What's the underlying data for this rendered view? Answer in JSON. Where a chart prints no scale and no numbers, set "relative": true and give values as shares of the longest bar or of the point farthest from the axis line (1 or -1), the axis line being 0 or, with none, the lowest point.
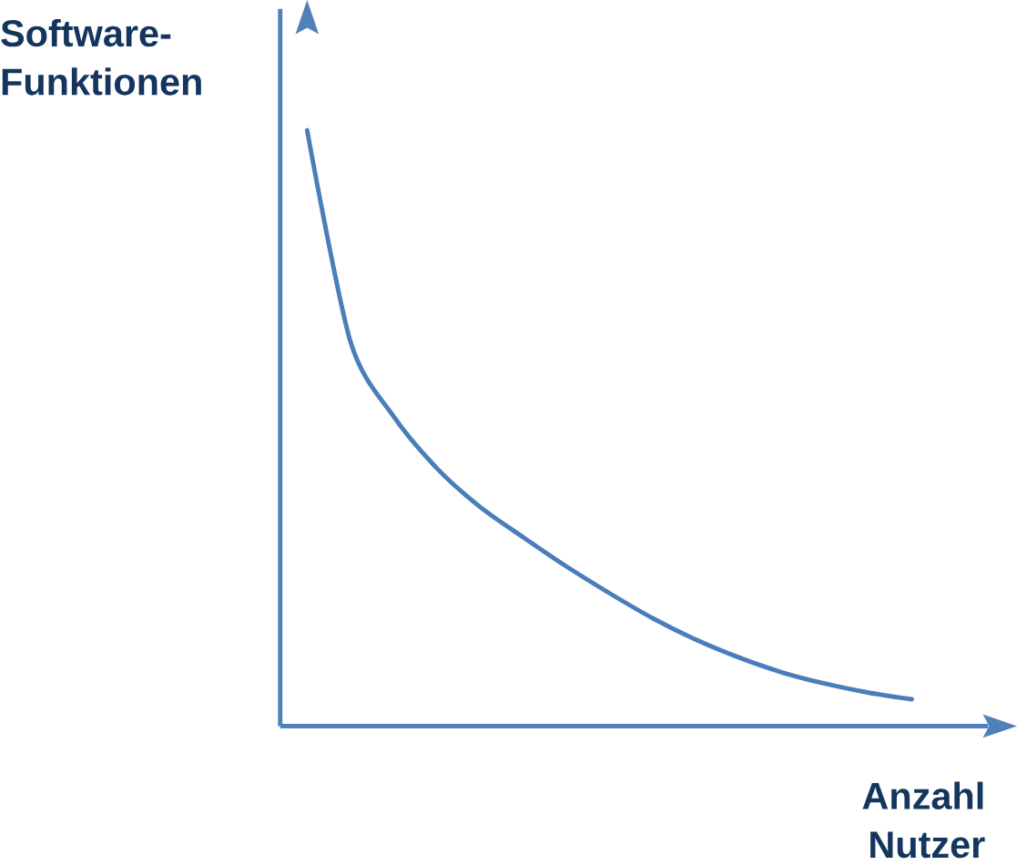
{
  "chart_data": {
    "type": "line",
    "relative": true,
    "xlabel": "Anzahl Nutzer",
    "ylabel": "Software-Funktionen",
    "categories": [
      null,
      null,
      null,
      null,
      null,
      null,
      null,
      null,
      null,
      null,
      null,
      null,
      null,
      null,
      null
    ],
    "series": [
      {
        "color": "#4a7ebb",
        "values": [
          1.0,
          0.646,
          0.52,
          0.433,
          0.368,
          0.317,
          0.268,
          0.223,
          0.181,
          0.145,
          0.115,
          0.09,
          0.071,
          0.056,
          0.045
        ]
      }
    ]
  }
}
